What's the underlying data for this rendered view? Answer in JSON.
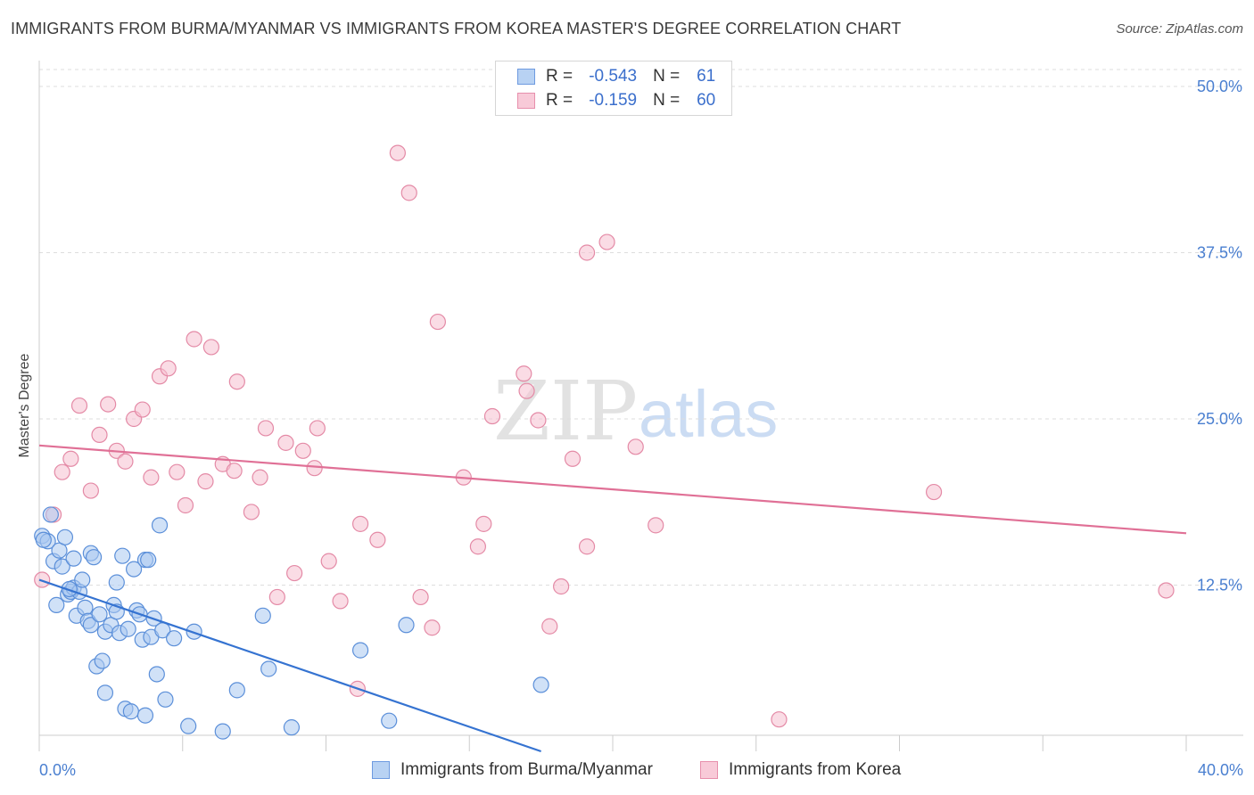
{
  "title": "IMMIGRANTS FROM BURMA/MYANMAR VS IMMIGRANTS FROM KOREA MASTER'S DEGREE CORRELATION CHART",
  "source": "Source: ZipAtlas.com",
  "legend": {
    "r_label": "R =",
    "n_label": "N =",
    "series1": {
      "r": "-0.543",
      "n": "61"
    },
    "series2": {
      "r": "-0.159",
      "n": "60"
    }
  },
  "bottom_legend": {
    "series1": "Immigrants from Burma/Myanmar",
    "series2": "Immigrants from Korea"
  },
  "watermark": {
    "zip": "ZIP",
    "atlas": "atlas"
  },
  "chart_data": {
    "type": "scatter",
    "title": "IMMIGRANTS FROM BURMA/MYANMAR VS IMMIGRANTS FROM KOREA MASTER'S DEGREE CORRELATION CHART",
    "xlabel": "",
    "ylabel": "Master's Degree",
    "xlim": [
      0,
      40
    ],
    "ylim": [
      0,
      50
    ],
    "x_tick_labels": [
      "0.0%",
      "40.0%"
    ],
    "y_ticks": [
      12.5,
      25.0,
      37.5,
      50.0
    ],
    "y_tick_labels": [
      "12.5%",
      "25.0%",
      "37.5%",
      "50.0%"
    ],
    "grid": true,
    "colors": {
      "series1_fill": "#a9c8f0",
      "series1_stroke": "#5b8fd9",
      "series1_line": "#3573d1",
      "series2_fill": "#f5bfd0",
      "series2_stroke": "#e48aa6",
      "series2_line": "#e07096",
      "tick_label": "#4a7fd0",
      "grid": "#dddddd",
      "axis": "#cccccc"
    },
    "series": [
      {
        "name": "Immigrants from Burma/Myanmar",
        "trend": {
          "x": [
            0,
            17.5
          ],
          "y": [
            12.9,
            0
          ]
        },
        "points": [
          [
            0.1,
            16.2
          ],
          [
            0.3,
            15.8
          ],
          [
            0.4,
            17.8
          ],
          [
            0.5,
            14.3
          ],
          [
            0.6,
            11.0
          ],
          [
            0.7,
            15.1
          ],
          [
            0.8,
            13.9
          ],
          [
            0.9,
            16.1
          ],
          [
            1.0,
            11.8
          ],
          [
            1.1,
            12.0
          ],
          [
            1.2,
            12.3
          ],
          [
            1.2,
            14.5
          ],
          [
            1.3,
            10.2
          ],
          [
            1.4,
            12.0
          ],
          [
            1.5,
            12.9
          ],
          [
            1.6,
            10.8
          ],
          [
            1.7,
            9.8
          ],
          [
            1.8,
            9.5
          ],
          [
            1.8,
            14.9
          ],
          [
            1.9,
            14.6
          ],
          [
            2.0,
            6.4
          ],
          [
            2.1,
            10.3
          ],
          [
            2.2,
            6.8
          ],
          [
            2.3,
            9.0
          ],
          [
            2.3,
            4.4
          ],
          [
            2.5,
            9.5
          ],
          [
            2.6,
            11.0
          ],
          [
            2.7,
            12.7
          ],
          [
            2.7,
            10.5
          ],
          [
            2.8,
            8.9
          ],
          [
            2.9,
            14.7
          ],
          [
            3.0,
            3.2
          ],
          [
            3.1,
            9.2
          ],
          [
            3.2,
            3.0
          ],
          [
            3.3,
            13.7
          ],
          [
            3.4,
            10.6
          ],
          [
            3.5,
            10.3
          ],
          [
            3.6,
            8.4
          ],
          [
            3.7,
            14.4
          ],
          [
            3.7,
            2.7
          ],
          [
            3.8,
            14.4
          ],
          [
            3.9,
            8.6
          ],
          [
            4.0,
            10.0
          ],
          [
            4.1,
            5.8
          ],
          [
            4.2,
            17.0
          ],
          [
            4.3,
            9.1
          ],
          [
            4.4,
            3.9
          ],
          [
            4.7,
            8.5
          ],
          [
            5.2,
            1.9
          ],
          [
            5.4,
            9.0
          ],
          [
            6.4,
            1.5
          ],
          [
            6.9,
            4.6
          ],
          [
            7.8,
            10.2
          ],
          [
            8.0,
            6.2
          ],
          [
            8.8,
            1.8
          ],
          [
            11.2,
            7.6
          ],
          [
            12.2,
            2.3
          ],
          [
            12.8,
            9.5
          ],
          [
            17.5,
            5.0
          ],
          [
            0.15,
            15.9
          ],
          [
            1.05,
            12.2
          ]
        ]
      },
      {
        "name": "Immigrants from Korea",
        "trend": {
          "x": [
            0,
            40
          ],
          "y": [
            23.0,
            16.4
          ]
        },
        "points": [
          [
            0.1,
            12.9
          ],
          [
            0.5,
            17.8
          ],
          [
            0.8,
            21.0
          ],
          [
            1.1,
            22.0
          ],
          [
            1.4,
            26.0
          ],
          [
            1.8,
            19.6
          ],
          [
            2.1,
            23.8
          ],
          [
            2.4,
            26.1
          ],
          [
            2.7,
            22.6
          ],
          [
            3.0,
            21.8
          ],
          [
            3.3,
            25.0
          ],
          [
            3.6,
            25.7
          ],
          [
            3.9,
            20.6
          ],
          [
            4.2,
            28.2
          ],
          [
            4.5,
            28.8
          ],
          [
            4.8,
            21.0
          ],
          [
            5.1,
            18.5
          ],
          [
            5.4,
            31.0
          ],
          [
            5.8,
            20.3
          ],
          [
            6.0,
            30.4
          ],
          [
            6.4,
            21.6
          ],
          [
            6.8,
            21.1
          ],
          [
            6.9,
            27.8
          ],
          [
            7.4,
            18.0
          ],
          [
            7.7,
            20.6
          ],
          [
            7.9,
            24.3
          ],
          [
            8.3,
            11.6
          ],
          [
            8.6,
            23.2
          ],
          [
            8.9,
            13.4
          ],
          [
            9.2,
            22.6
          ],
          [
            9.6,
            21.3
          ],
          [
            9.7,
            24.3
          ],
          [
            10.1,
            14.3
          ],
          [
            10.5,
            11.3
          ],
          [
            11.1,
            4.7
          ],
          [
            11.2,
            17.1
          ],
          [
            11.8,
            15.9
          ],
          [
            12.5,
            45.0
          ],
          [
            12.9,
            42.0
          ],
          [
            13.3,
            11.6
          ],
          [
            13.7,
            9.3
          ],
          [
            13.9,
            32.3
          ],
          [
            14.8,
            20.6
          ],
          [
            15.3,
            15.4
          ],
          [
            15.5,
            17.1
          ],
          [
            15.8,
            25.2
          ],
          [
            16.9,
            28.4
          ],
          [
            17.0,
            27.1
          ],
          [
            17.4,
            24.9
          ],
          [
            17.8,
            9.4
          ],
          [
            18.2,
            12.4
          ],
          [
            18.6,
            22.0
          ],
          [
            19.1,
            37.5
          ],
          [
            19.1,
            15.4
          ],
          [
            19.8,
            38.3
          ],
          [
            20.8,
            22.9
          ],
          [
            21.5,
            17.0
          ],
          [
            25.8,
            2.4
          ],
          [
            31.2,
            19.5
          ],
          [
            39.3,
            12.1
          ]
        ]
      }
    ]
  }
}
